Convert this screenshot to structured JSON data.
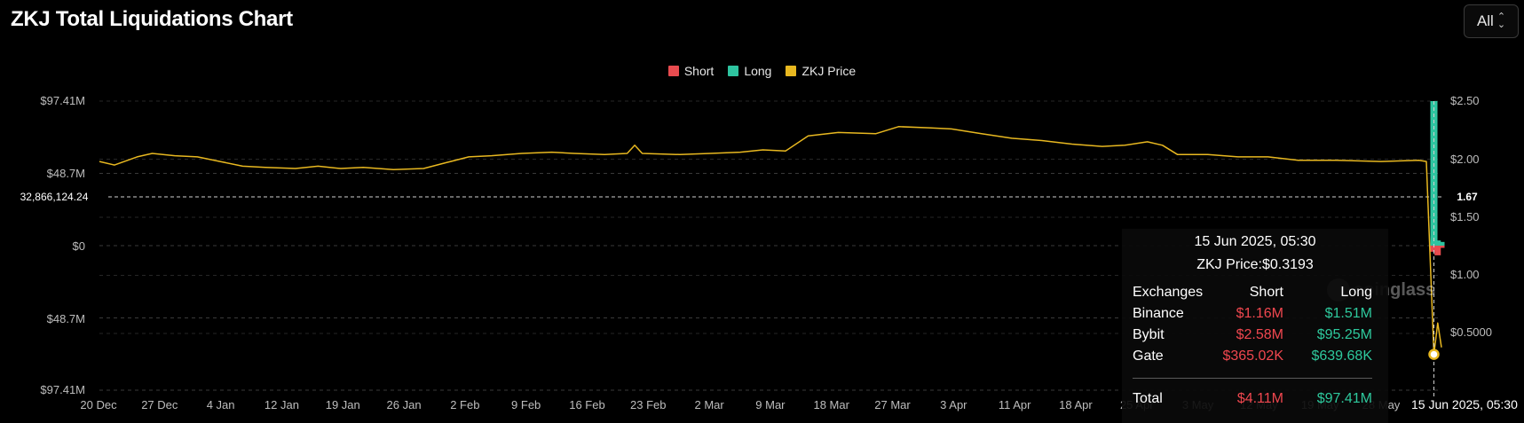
{
  "header": {
    "title": "ZKJ Total Liquidations Chart",
    "range_selector": "All"
  },
  "colors": {
    "short": "#e84b4f",
    "long": "#2ec4a0",
    "price": "#e8b820",
    "background": "#000000"
  },
  "chart_data": {
    "type": "bar",
    "title": "ZKJ Total Liquidations Chart",
    "legend": {
      "placement": "top-center",
      "entries": [
        {
          "name": "Short",
          "color": "#e84b4f"
        },
        {
          "name": "Long",
          "color": "#2ec4a0"
        },
        {
          "name": "ZKJ Price",
          "color": "#e8b820"
        }
      ]
    },
    "left_axis": {
      "ticks": [
        "$97.41M",
        "$48.7M",
        "$0",
        "$48.7M",
        "$97.41M"
      ],
      "tick_values": [
        97.41,
        48.7,
        0,
        -48.7,
        -97.41
      ],
      "range": [
        -97.41,
        97.41
      ],
      "unit": "USD millions (long above zero, short below zero)"
    },
    "right_axis": {
      "ticks": [
        "$2.50",
        "$2.00",
        "$1.50",
        "$1.00",
        "$0.5000"
      ],
      "tick_values": [
        2.5,
        2.0,
        1.5,
        1.0,
        0.5
      ],
      "range": [
        0.0,
        2.5
      ]
    },
    "x_axis": {
      "ticks": [
        "20 Dec",
        "27 Dec",
        "4 Jan",
        "12 Jan",
        "19 Jan",
        "26 Jan",
        "2 Feb",
        "9 Feb",
        "16 Feb",
        "23 Feb",
        "2 Mar",
        "9 Mar",
        "18 Mar",
        "27 Mar",
        "3 Apr",
        "11 Apr",
        "18 Apr",
        "25 Apr",
        "3 May",
        "12 May",
        "19 May",
        "28 May"
      ],
      "start": "2024-12-20",
      "end": "2025-06-16"
    },
    "grid": true,
    "price_series": {
      "name": "ZKJ Price",
      "points": [
        [
          "2024-12-20",
          1.98
        ],
        [
          "2024-12-22",
          1.95
        ],
        [
          "2024-12-25",
          2.02
        ],
        [
          "2024-12-27",
          2.05
        ],
        [
          "2024-12-30",
          2.03
        ],
        [
          "2025-01-02",
          2.02
        ],
        [
          "2025-01-05",
          1.98
        ],
        [
          "2025-01-08",
          1.94
        ],
        [
          "2025-01-11",
          1.93
        ],
        [
          "2025-01-15",
          1.92
        ],
        [
          "2025-01-18",
          1.94
        ],
        [
          "2025-01-21",
          1.92
        ],
        [
          "2025-01-24",
          1.93
        ],
        [
          "2025-01-28",
          1.91
        ],
        [
          "2025-02-01",
          1.92
        ],
        [
          "2025-02-04",
          1.97
        ],
        [
          "2025-02-07",
          2.02
        ],
        [
          "2025-02-10",
          2.03
        ],
        [
          "2025-02-14",
          2.05
        ],
        [
          "2025-02-18",
          2.06
        ],
        [
          "2025-02-21",
          2.05
        ],
        [
          "2025-02-25",
          2.04
        ],
        [
          "2025-02-28",
          2.05
        ],
        [
          "2025-03-01",
          2.12
        ],
        [
          "2025-03-02",
          2.05
        ],
        [
          "2025-03-07",
          2.04
        ],
        [
          "2025-03-11",
          2.05
        ],
        [
          "2025-03-15",
          2.06
        ],
        [
          "2025-03-18",
          2.08
        ],
        [
          "2025-03-21",
          2.07
        ],
        [
          "2025-03-24",
          2.2
        ],
        [
          "2025-03-28",
          2.23
        ],
        [
          "2025-04-02",
          2.22
        ],
        [
          "2025-04-05",
          2.28
        ],
        [
          "2025-04-09",
          2.27
        ],
        [
          "2025-04-12",
          2.26
        ],
        [
          "2025-04-16",
          2.22
        ],
        [
          "2025-04-20",
          2.18
        ],
        [
          "2025-04-24",
          2.16
        ],
        [
          "2025-04-28",
          2.13
        ],
        [
          "2025-05-02",
          2.11
        ],
        [
          "2025-05-05",
          2.12
        ],
        [
          "2025-05-08",
          2.15
        ],
        [
          "2025-05-10",
          2.12
        ],
        [
          "2025-05-12",
          2.04
        ],
        [
          "2025-05-16",
          2.04
        ],
        [
          "2025-05-20",
          2.02
        ],
        [
          "2025-05-24",
          2.02
        ],
        [
          "2025-05-28",
          1.99
        ],
        [
          "2025-06-02",
          1.99
        ],
        [
          "2025-06-08",
          1.98
        ],
        [
          "2025-06-13",
          1.99
        ],
        [
          "2025-06-14",
          1.98
        ],
        [
          "2025-06-15",
          0.32
        ],
        [
          "2025-06-15T12:00",
          0.59
        ],
        [
          "2025-06-16",
          0.38
        ]
      ]
    },
    "bars": [
      {
        "date": "2025-06-15",
        "long": 97.41,
        "short": -4.11
      },
      {
        "date": "2025-06-15T12:00",
        "long": 3.5,
        "short": -6.5
      },
      {
        "date": "2025-06-16",
        "long": 2.5,
        "short": -1.5
      }
    ],
    "crosshair": {
      "left_value": "32,866,124.24",
      "right_value": "1.67",
      "date": "15 Jun 2025, 05:30"
    },
    "tooltip": {
      "date": "15 Jun 2025, 05:30",
      "price": "ZKJ Price:$0.3193",
      "headers": {
        "exchange": "Exchanges",
        "short": "Short",
        "long": "Long"
      },
      "rows": [
        {
          "exchange": "Binance",
          "short": "$1.16M",
          "long": "$1.51M"
        },
        {
          "exchange": "Bybit",
          "short": "$2.58M",
          "long": "$95.25M"
        },
        {
          "exchange": "Gate",
          "short": "$365.02K",
          "long": "$639.68K"
        }
      ],
      "total": {
        "label": "Total",
        "short": "$4.11M",
        "long": "$97.41M"
      }
    },
    "watermark": "coinglass"
  }
}
